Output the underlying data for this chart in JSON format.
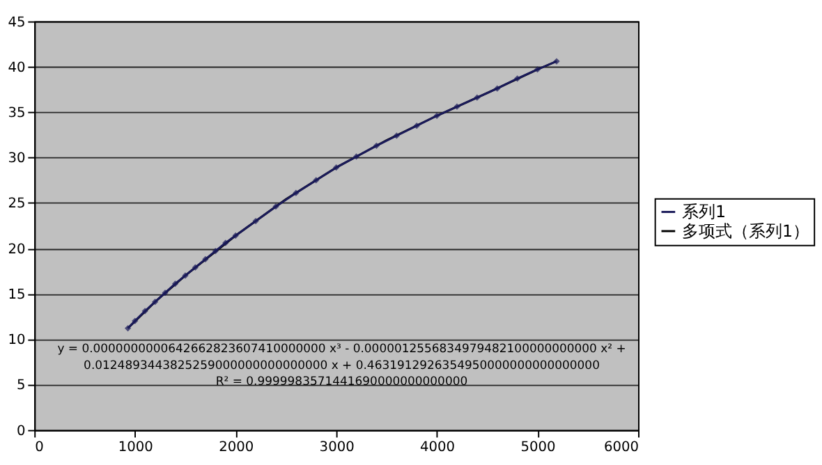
{
  "chart_data": {
    "type": "line",
    "xlim": [
      0,
      6000
    ],
    "xticks": [
      0,
      1000,
      2000,
      3000,
      4000,
      5000,
      6000
    ],
    "ylim": [
      0,
      45
    ],
    "yticks": [
      0,
      5,
      10,
      15,
      20,
      25,
      30,
      35,
      40,
      45
    ],
    "grid": "y",
    "legend": "right",
    "annotations": [
      "y = 0.0000000000642662823607410000000 x³ - 0.0000012556834979482100000000000 x² +",
      "0.0124893443825259000000000000000 x + 0.4631912926354950000000000000000",
      "R² = 0.9999983571441690000000000000"
    ],
    "series": [
      {
        "name": "系列1",
        "color": "#1a1a5a",
        "marker": "diamond",
        "x": [
          930,
          1000,
          1100,
          1200,
          1300,
          1400,
          1500,
          1600,
          1700,
          1800,
          1900,
          2000,
          2200,
          2400,
          2600,
          2800,
          3000,
          3200,
          3400,
          3600,
          3800,
          4000,
          4200,
          4400,
          4600,
          4800,
          5000,
          5190
        ],
        "values": [
          11.2,
          12.0,
          13.1,
          14.1,
          15.1,
          16.1,
          17.0,
          17.9,
          18.8,
          19.7,
          20.6,
          21.4,
          23.0,
          24.6,
          26.1,
          27.5,
          28.9,
          30.1,
          31.3,
          32.4,
          33.5,
          34.6,
          35.6,
          36.6,
          37.6,
          38.7,
          39.7,
          40.6
        ]
      },
      {
        "name": "多项式（系列1）",
        "color": "#000000",
        "type": "line",
        "marker": "none",
        "x": [
          930,
          1200,
          1500,
          2000,
          2500,
          3000,
          3500,
          4000,
          4500,
          5000,
          5190
        ],
        "values": [
          11.2,
          14.1,
          17.0,
          21.4,
          25.4,
          28.9,
          31.9,
          34.6,
          37.1,
          39.7,
          40.6
        ]
      }
    ]
  }
}
